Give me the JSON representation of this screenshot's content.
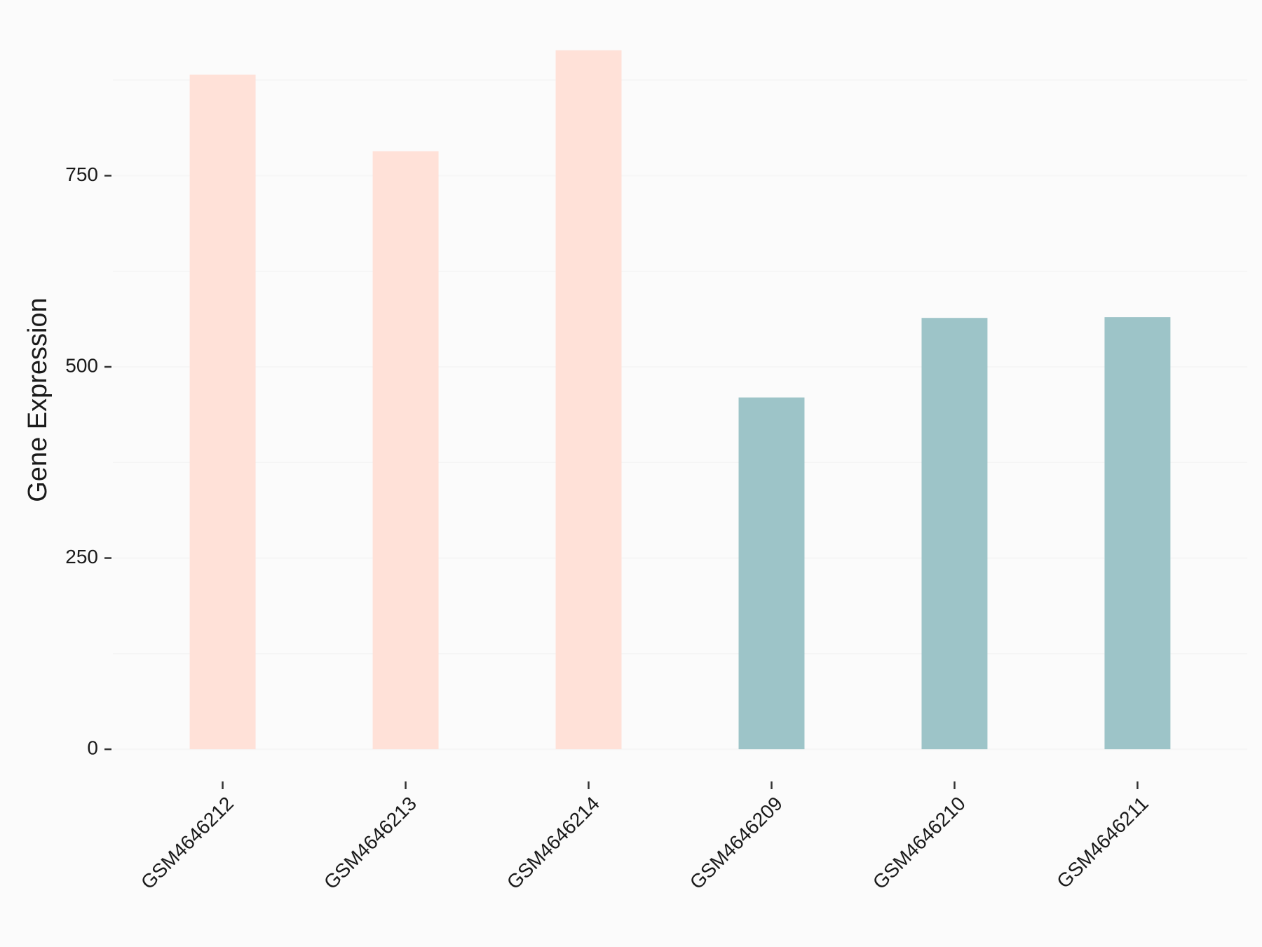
{
  "chart_data": {
    "type": "bar",
    "y_label": "Gene Expression",
    "categories": [
      "GSM4646212",
      "GSM4646213",
      "GSM4646214",
      "GSM4646209",
      "GSM4646210",
      "GSM4646211"
    ],
    "values": [
      882,
      782,
      914,
      460,
      564,
      565
    ],
    "colors": [
      "#ffe1d8",
      "#ffe1d8",
      "#ffe1d8",
      "#9dc4c8",
      "#9dc4c8",
      "#9dc4c8"
    ],
    "ylim": [
      -21,
      932
    ],
    "yticks": [
      0,
      250,
      500,
      750
    ],
    "minor_yticks": [
      125,
      375,
      625,
      875
    ],
    "grid": true
  }
}
